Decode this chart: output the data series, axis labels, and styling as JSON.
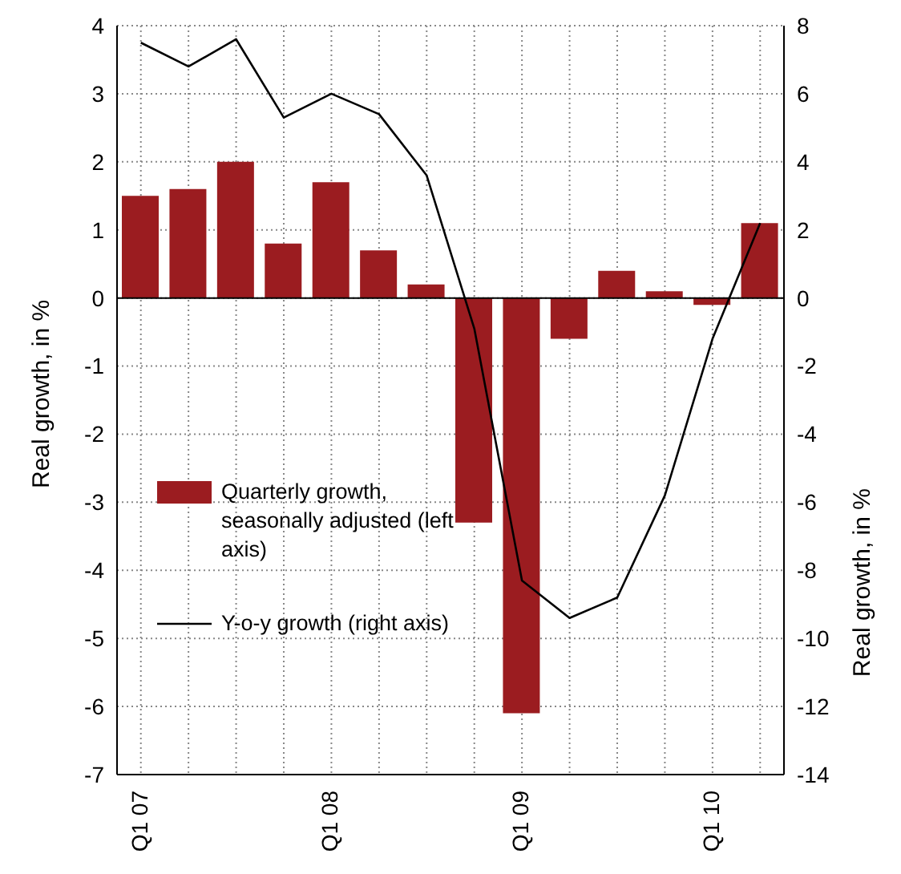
{
  "chart_data": {
    "type": "bar",
    "ylabel": "Real growth, in %",
    "y2label": "Real growth, in %",
    "categories": [
      "Q1 07",
      null,
      null,
      null,
      "Q1 08",
      null,
      null,
      null,
      "Q1 09",
      null,
      null,
      null,
      "Q1 10",
      null
    ],
    "series": [
      {
        "name": "Quarterly growth, seasonally adjusted (left axis)",
        "color": "#9b1c20",
        "values": [
          1.5,
          1.6,
          2.0,
          0.8,
          1.7,
          0.7,
          0.2,
          -3.3,
          -6.1,
          -0.6,
          0.4,
          0.1,
          -0.1,
          1.1
        ]
      },
      {
        "name": "Y-o-y growth (right axis)",
        "type": "line",
        "axis": "y2",
        "color": "#000000",
        "values": [
          7.5,
          6.8,
          7.6,
          5.3,
          6.0,
          5.4,
          3.6,
          -0.9,
          -8.3,
          -9.4,
          -8.8,
          -5.8,
          -1.2,
          2.2
        ]
      }
    ],
    "ylim": [
      -7,
      4
    ],
    "yticks": [
      -7,
      -6,
      -5,
      -4,
      -3,
      -2,
      -1,
      0,
      1,
      2,
      3,
      4
    ],
    "y2lim": [
      -14,
      8
    ],
    "y2ticks": [
      -14,
      -12,
      -10,
      -8,
      -6,
      -4,
      -2,
      0,
      2,
      4,
      6,
      8
    ],
    "ref_lines": [
      {
        "axis": "y",
        "value": 0,
        "color": "#000000"
      }
    ],
    "grid": true,
    "legend": "left",
    "marker": "none",
    "line_style": "solid"
  }
}
